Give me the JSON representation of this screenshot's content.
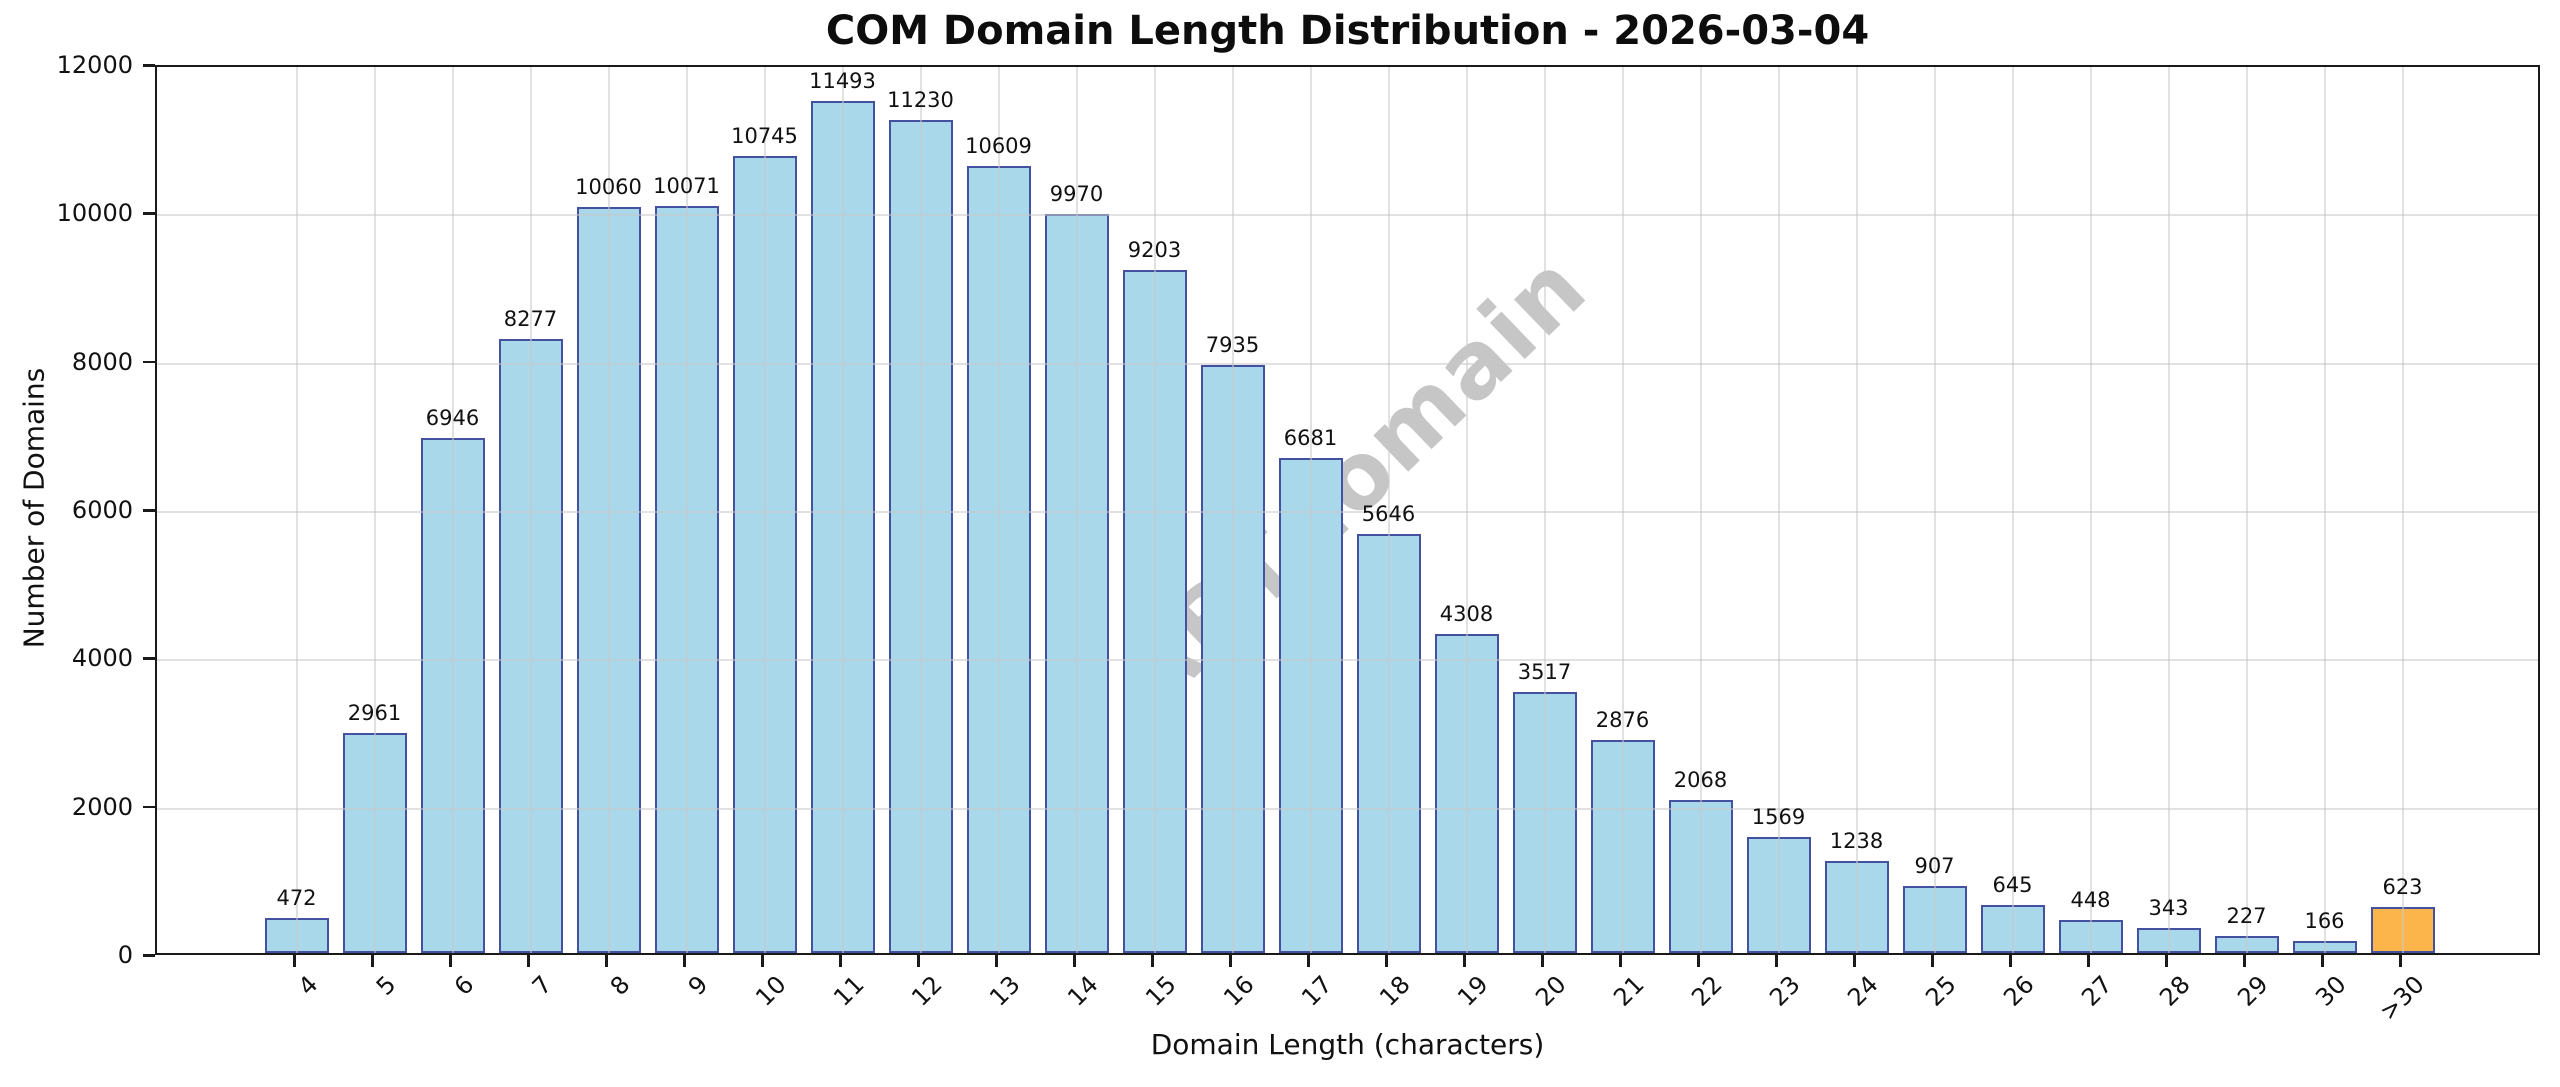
{
  "chart_data": {
    "type": "bar",
    "title": "COM Domain Length Distribution - 2026-03-04",
    "xlabel": "Domain Length (characters)",
    "ylabel": "Number of Domains",
    "watermark": "ABTdomain",
    "categories": [
      "4",
      "5",
      "6",
      "7",
      "8",
      "9",
      "10",
      "11",
      "12",
      "13",
      "14",
      "15",
      "16",
      "17",
      "18",
      "19",
      "20",
      "21",
      "22",
      "23",
      "24",
      "25",
      "26",
      "27",
      "28",
      "29",
      "30",
      ">30"
    ],
    "values": [
      472,
      2961,
      6946,
      8277,
      10060,
      10071,
      10745,
      11493,
      11230,
      10609,
      9970,
      9203,
      7935,
      6681,
      5646,
      4308,
      3517,
      2876,
      2068,
      1569,
      1238,
      907,
      645,
      448,
      343,
      227,
      166,
      623
    ],
    "ylim": [
      0,
      12000
    ],
    "yticks": [
      0,
      2000,
      4000,
      6000,
      8000,
      10000,
      12000
    ],
    "grid": true,
    "legend": "none",
    "bar_fill_color": "#a8d8ea",
    "bar_edge_color": "#4450a0",
    "highlight_category": ">30",
    "highlight_fill_color": "#fbb54a",
    "watermark_color": "#8f8f8f",
    "grid_color": "#c8c8c8",
    "spine_color": "#1a1a1a"
  }
}
